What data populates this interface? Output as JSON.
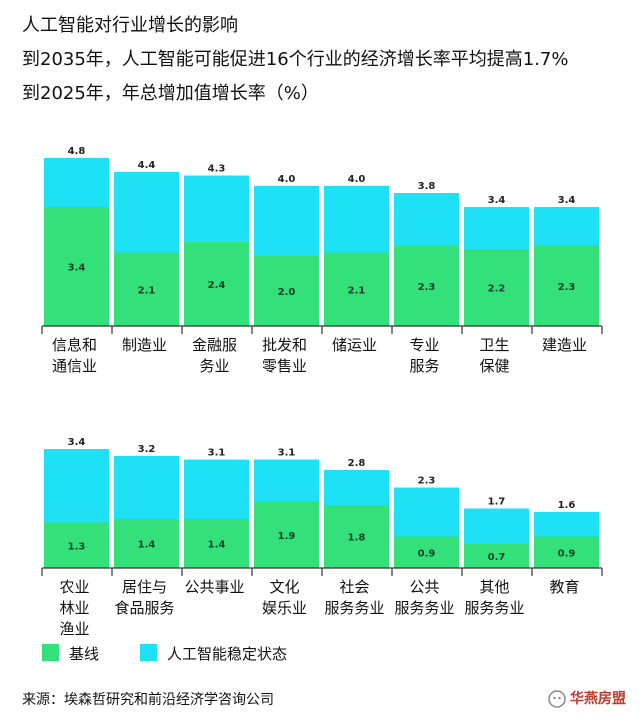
{
  "header": {
    "line1": "人工智能对行业增长的影响",
    "line2": "到2035年，人工智能可能促进16个行业的经济增长率平均提高1.7%",
    "line3": "到2025年，年总增加值增长率（%）"
  },
  "colors": {
    "baseline": "#33e07a",
    "ai": "#1fe1f5",
    "axis": "#333333"
  },
  "chart_data": {
    "type": "bar",
    "stacked": true,
    "unit": "%",
    "legend": [
      "基线",
      "人工智能稳定状态"
    ],
    "panels": [
      {
        "categories": [
          [
            "信息和",
            "通信业"
          ],
          [
            "制造业"
          ],
          [
            "金融服",
            "务业"
          ],
          [
            "批发和",
            "零售业"
          ],
          [
            "储运业"
          ],
          [
            "专业",
            "服务"
          ],
          [
            "卫生",
            "保健"
          ],
          [
            "建造业"
          ]
        ],
        "baseline": [
          3.4,
          2.1,
          2.4,
          2.0,
          2.1,
          2.3,
          2.2,
          2.3
        ],
        "total": [
          4.8,
          4.4,
          4.3,
          4.0,
          4.0,
          3.8,
          3.4,
          3.4
        ],
        "baseline_labels": [
          "3.4",
          "2.1",
          "2.4",
          "2.0",
          "2.1",
          "2.3",
          "2.2",
          "2.3"
        ],
        "total_labels": [
          "4.8",
          "4.4",
          "4.3",
          "4.0",
          "4.0",
          "3.8",
          "3.4",
          "3.4"
        ]
      },
      {
        "categories": [
          [
            "农业",
            "林业",
            "渔业"
          ],
          [
            "居住与",
            "食品服务"
          ],
          [
            "公共事业"
          ],
          [
            "文化",
            "娱乐业"
          ],
          [
            "社会",
            "服务务业"
          ],
          [
            "公共",
            "服务务业"
          ],
          [
            "其他",
            "服务务业"
          ],
          [
            "教育"
          ]
        ],
        "baseline": [
          1.3,
          1.4,
          1.4,
          1.9,
          1.8,
          0.9,
          0.7,
          0.9
        ],
        "total": [
          3.4,
          3.2,
          3.1,
          3.1,
          2.8,
          2.3,
          1.7,
          1.6
        ],
        "baseline_labels": [
          "1.3",
          "1.4",
          "1.4",
          "1.9",
          "1.8",
          "0.9",
          "0.7",
          "0.9"
        ],
        "total_labels": [
          "3.4",
          "3.2",
          "3.1",
          "3.1",
          "2.8",
          "2.3",
          "1.7",
          "1.6"
        ]
      }
    ]
  },
  "footer": {
    "source": "来源：埃森哲研究和前沿经济学咨询公司",
    "brand": "华燕房盟"
  }
}
